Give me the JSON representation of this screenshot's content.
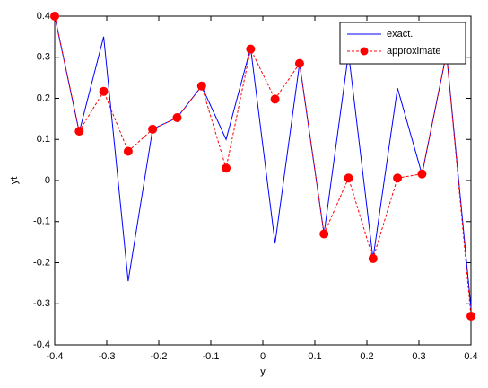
{
  "chart_data": {
    "type": "line",
    "x_label": "y",
    "y_label": "yt",
    "x": [
      -0.4,
      -0.3529,
      -0.3059,
      -0.2588,
      -0.2118,
      -0.1647,
      -0.1176,
      -0.0706,
      -0.0235,
      0.0235,
      0.0706,
      0.1176,
      0.1647,
      0.2118,
      0.2588,
      0.3059,
      0.3529,
      0.4
    ],
    "series": [
      {
        "name": "exact.",
        "color": "#0000ff",
        "dashed": false,
        "marker": false,
        "values": [
          0.4,
          0.118,
          0.35,
          -0.245,
          0.125,
          0.153,
          0.23,
          0.1,
          0.323,
          -0.153,
          0.285,
          -0.13,
          0.31,
          -0.19,
          0.225,
          0.015,
          0.31,
          -0.31
        ]
      },
      {
        "name": "approximate",
        "color": "#ff0000",
        "dashed": true,
        "marker": true,
        "values": [
          0.4,
          0.12,
          0.217,
          0.071,
          0.125,
          0.153,
          0.23,
          0.03,
          0.32,
          0.198,
          0.285,
          -0.13,
          0.006,
          -0.19,
          0.006,
          0.016,
          0.31,
          -0.33
        ]
      }
    ],
    "xlim": [
      -0.4,
      0.4
    ],
    "xticks": [
      -0.4,
      -0.3,
      -0.2,
      -0.1,
      0,
      0.1,
      0.2,
      0.3,
      0.4
    ],
    "ylim": [
      -0.4,
      0.4
    ],
    "yticks": [
      -0.4,
      -0.3,
      -0.2,
      -0.1,
      0,
      0.1,
      0.2,
      0.3,
      0.4
    ],
    "legend": "top-right"
  }
}
